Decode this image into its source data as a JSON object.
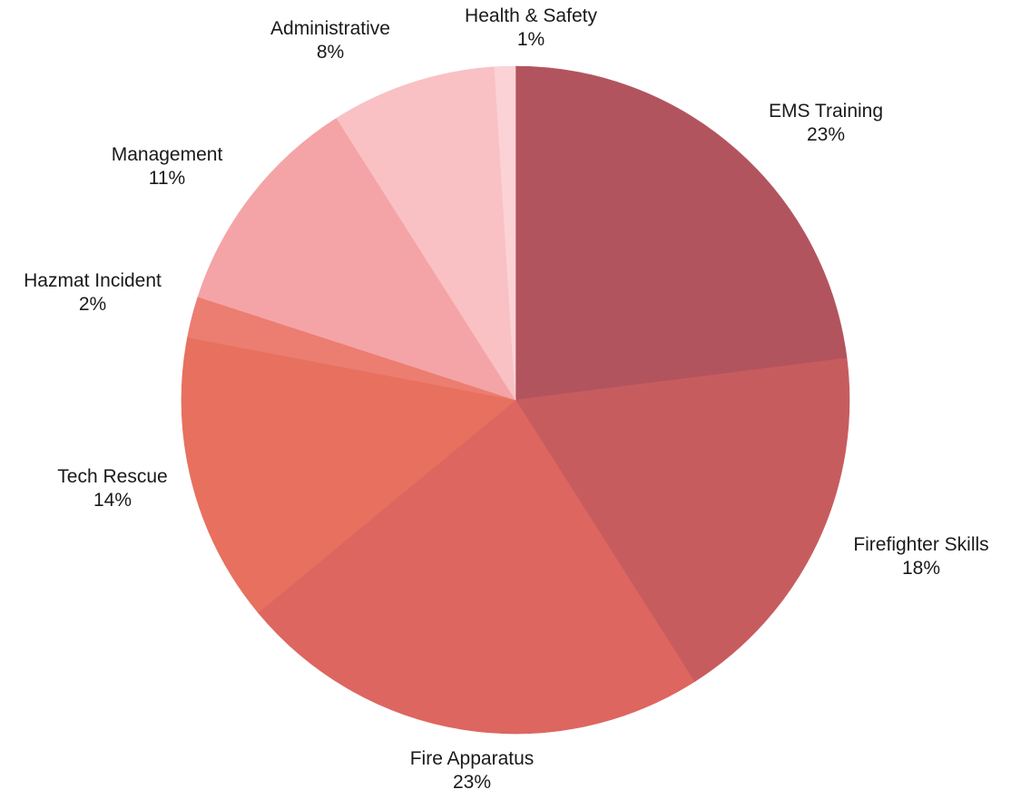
{
  "chart_data": {
    "type": "pie",
    "title": "",
    "start_angle_deg": 0,
    "direction": "clockwise",
    "slices": [
      {
        "label": "EMS Training",
        "percent_label": "23%",
        "value": 23,
        "color": "#b2545e"
      },
      {
        "label": "Firefighter Skills",
        "percent_label": "18%",
        "value": 18,
        "color": "#c75c5f"
      },
      {
        "label": "Fire Apparatus",
        "percent_label": "23%",
        "value": 23,
        "color": "#dd6660"
      },
      {
        "label": "Tech Rescue",
        "percent_label": "14%",
        "value": 14,
        "color": "#e7705f"
      },
      {
        "label": "Hazmat Incident",
        "percent_label": "2%",
        "value": 2,
        "color": "#ec7d71"
      },
      {
        "label": "Management",
        "percent_label": "11%",
        "value": 11,
        "color": "#f4a4a6"
      },
      {
        "label": "Administrative",
        "percent_label": "8%",
        "value": 8,
        "color": "#f9c1c4"
      },
      {
        "label": "Health & Safety",
        "percent_label": "1%",
        "value": 1,
        "color": "#fbd3d6"
      }
    ]
  }
}
